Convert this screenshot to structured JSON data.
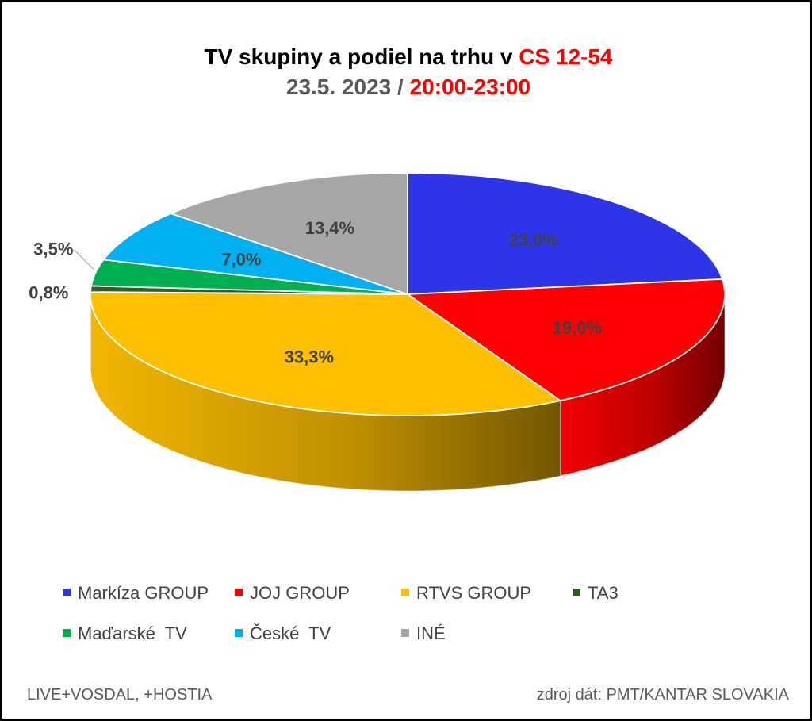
{
  "title": {
    "line1_text": "TV skupiny a podiel na trhu v ",
    "line1_highlight": "CS 12-54",
    "line2_text": "23.5. 2023 / ",
    "line2_highlight": "20:00-23:00"
  },
  "chart_data": {
    "type": "pie",
    "style": "3d-exploded-none",
    "slices": [
      {
        "name": "Markíza GROUP",
        "value": 23.0,
        "label": "23,0%",
        "color": "#2e35e8",
        "side": "#15197a"
      },
      {
        "name": "JOJ GROUP",
        "value": 19.0,
        "label": "19,0%",
        "color": "#ff0000",
        "side": "#6b0000"
      },
      {
        "name": "RTVS GROUP",
        "value": 33.3,
        "label": "33,3%",
        "color": "#ffc000",
        "side": "#a07a00"
      },
      {
        "name": "TA3",
        "value": 0.8,
        "label": "0,8%",
        "color": "#2d5e26",
        "side": "#1b3a17"
      },
      {
        "name": "Maďarské  TV",
        "value": 3.5,
        "label": "3,5%",
        "color": "#00b050",
        "side": "#006b30"
      },
      {
        "name": "České  TV",
        "value": 7.0,
        "label": "7,0%",
        "color": "#00b0f0",
        "side": "#006a91"
      },
      {
        "name": "INÉ",
        "value": 13.4,
        "label": "13,4%",
        "color": "#a6a6a6",
        "side": "#606060"
      }
    ],
    "legend_position": "bottom"
  },
  "footer": {
    "left": "LIVE+VOSDAL,  +HOSTIA",
    "right": "zdroj dát: PMT/KANTAR SLOVAKIA"
  }
}
